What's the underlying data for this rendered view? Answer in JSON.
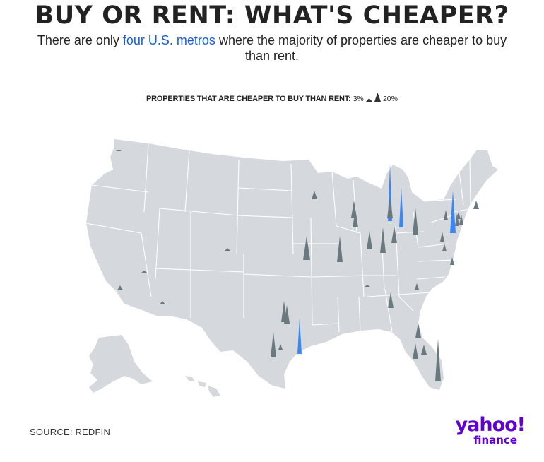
{
  "header": {
    "title": "BUY OR RENT: WHAT'S CHEAPER?",
    "subtitle_pre": "There are only ",
    "subtitle_highlight": "four U.S. metros",
    "subtitle_post": " where the majority of properties are cheaper to buy than rent."
  },
  "legend": {
    "label": "PROPERTIES THAT ARE CHEAPER TO BUY THAN RENT:",
    "min": "3%",
    "max": "20%"
  },
  "footer": {
    "source": "SOURCE: REDFIN",
    "logo_main": "yahoo!",
    "logo_sub": "finance"
  },
  "colors": {
    "map_fill": "#d5d9dd",
    "state_border": "#ffffff",
    "spike_normal": "#6a7880",
    "spike_majority": "#3b86f2",
    "highlight_text": "#1a5fd1",
    "logo": "#5f01d1"
  },
  "icons": {
    "spike": "triangle-spike-icon"
  }
}
